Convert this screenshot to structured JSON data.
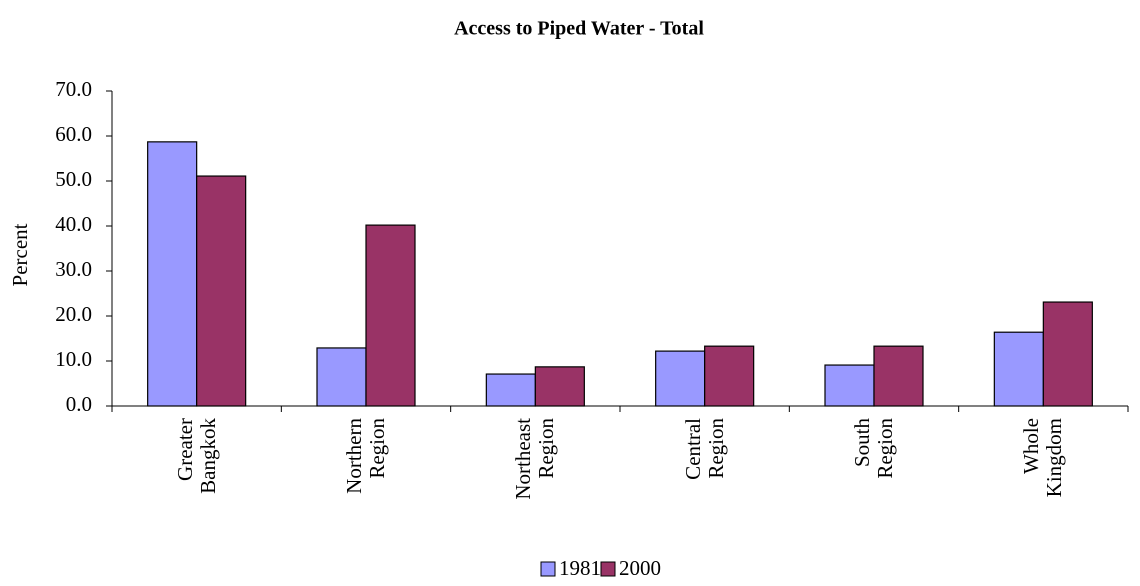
{
  "chart_data": {
    "type": "bar",
    "title": "Access to Piped Water - Total",
    "y_label": "Percent",
    "categories": [
      "Greater Bangkok",
      "Northern Region",
      "Northeast Region",
      "Central Region",
      "South Region",
      "Whole Kingdom"
    ],
    "series": [
      {
        "name": "1981",
        "color": "#9999ff",
        "values": [
          58.7,
          12.9,
          7.1,
          12.2,
          9.1,
          16.4
        ]
      },
      {
        "name": "2000",
        "color": "#993366",
        "values": [
          51.1,
          40.2,
          8.7,
          13.3,
          13.3,
          23.1
        ]
      }
    ],
    "ylim": [
      0,
      70
    ],
    "yticks": [
      {
        "value": 0,
        "label": "0.0"
      },
      {
        "value": 10,
        "label": "10.0"
      },
      {
        "value": 20,
        "label": "20.0"
      },
      {
        "value": 30,
        "label": "30.0"
      },
      {
        "value": 40,
        "label": "40.0"
      },
      {
        "value": 50,
        "label": "50.0"
      },
      {
        "value": 60,
        "label": "60.0"
      },
      {
        "value": 70,
        "label": "70.0"
      }
    ],
    "grid": false,
    "legend": "bottom"
  }
}
